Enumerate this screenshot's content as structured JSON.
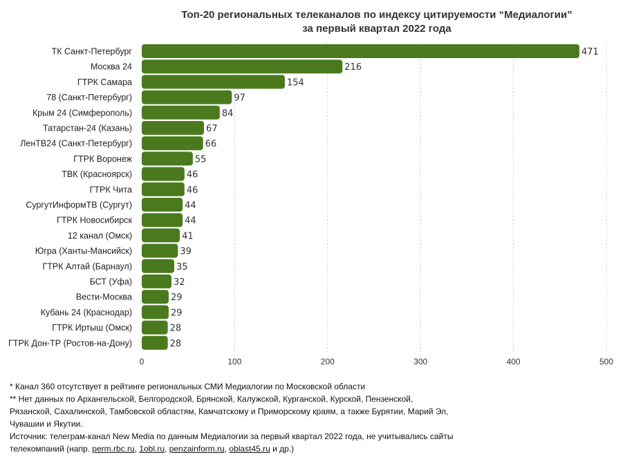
{
  "chart_data": {
    "type": "bar",
    "orientation": "horizontal",
    "title_lines": [
      "Топ-20 региональных телеканалов по индексу цитируемости “Медиалогии”",
      "за первый квартал 2022 года"
    ],
    "categories": [
      "ТК Санкт-Петербург",
      "Москва 24",
      "ГТРК Самара",
      "78 (Санкт-Петербург)",
      "Крым 24 (Симферополь)",
      "Татарстан-24 (Казань)",
      "ЛенТВ24 (Санкт-Петербург)",
      "ГТРК Воронеж",
      "ТВК (Красноярск)",
      "ГТРК Чита",
      "СургутИнформТВ (Сургут)",
      "ГТРК Новосибирск",
      "12 канал (Омск)",
      "Югра (Ханты-Мансийск)",
      "ГТРК Алтай (Барнаул)",
      "БСТ (Уфа)",
      "Вести-Москва",
      "Кубань 24 (Краснодар)",
      "ГТРК Иртыш (Омск)",
      "ГТРК Дон-ТР (Ростов-на-Дону)"
    ],
    "values": [
      471,
      216,
      154,
      97,
      84,
      67,
      66,
      55,
      46,
      46,
      44,
      44,
      41,
      39,
      35,
      32,
      29,
      29,
      28,
      28
    ],
    "xlim": [
      0,
      500
    ],
    "xticks": [
      0,
      100,
      200,
      300,
      400,
      500
    ],
    "grid": "vertical-dotted",
    "bar_color": "#4b7a1e"
  },
  "notes": {
    "line1": "* Канал 360 отсутствует в рейтинге региональных СМИ Медиалогии по Московской области",
    "line2a": "** Нет данных по Архангельской, Белгородской, Брянской, Калужской, Курганской, Курской, Пензенской,",
    "line2b": "Рязанской, Сахалинской, Тамбовской областям, Камчатскому и Приморскому краям, а также Бурятии, Марий Эл,",
    "line2c": "Чувашии и Якутии.",
    "line3a": "Источник: телеграм-канал New Media по данным Медиалогии за первый квартал 2022 года, не учитывались сайты",
    "line3b_prefix": "телекомпаний (напр. ",
    "links": [
      "perm.rbc.ru",
      "1obl.ru",
      "penzainform.ru",
      "oblast45.ru"
    ],
    "sep": ", ",
    "line3b_suffix": " и др.)"
  }
}
